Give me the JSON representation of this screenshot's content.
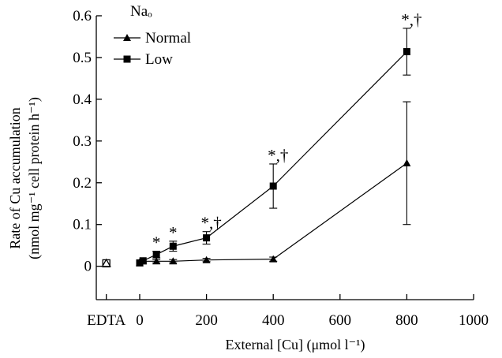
{
  "chart_data": {
    "type": "line",
    "xlabel": "External [Cu] (μmol l⁻¹)",
    "ylabel_line1": "Rate of Cu accumulation",
    "ylabel_line2": "(nmol mg⁻¹ cell protein h⁻¹)",
    "legend_title": "Naₒ",
    "legend_placement": "top-left",
    "grid": false,
    "xlim": [
      -130,
      1000
    ],
    "ylim": [
      -0.08,
      0.6
    ],
    "x_ticks": [
      {
        "value": -100,
        "label": "EDTA"
      },
      {
        "value": 0,
        "label": "0"
      },
      {
        "value": 200,
        "label": "200"
      },
      {
        "value": 400,
        "label": "400"
      },
      {
        "value": 600,
        "label": "600"
      },
      {
        "value": 800,
        "label": "800"
      },
      {
        "value": 1000,
        "label": "1000"
      }
    ],
    "y_ticks": [
      {
        "value": 0,
        "label": "0"
      },
      {
        "value": 0.1,
        "label": "0.1"
      },
      {
        "value": 0.2,
        "label": "0.2"
      },
      {
        "value": 0.3,
        "label": "0.3"
      },
      {
        "value": 0.4,
        "label": "0.4"
      },
      {
        "value": 0.5,
        "label": "0.5"
      },
      {
        "value": 0.6,
        "label": "0.6"
      }
    ],
    "edta_points": [
      {
        "series": "Normal",
        "x": -100,
        "y": 0.007
      },
      {
        "series": "Low",
        "x": -100,
        "y": 0.007
      }
    ],
    "series": [
      {
        "name": "Normal",
        "marker": "triangle",
        "x": [
          0,
          10,
          50,
          100,
          200,
          400,
          800
        ],
        "y": [
          0.008,
          0.012,
          0.012,
          0.012,
          0.015,
          0.017,
          0.247
        ],
        "err": [
          0,
          0,
          0.004,
          0.004,
          0.004,
          0.005,
          0.147
        ]
      },
      {
        "name": "Low",
        "marker": "square",
        "x": [
          0,
          10,
          50,
          100,
          200,
          400,
          800
        ],
        "y": [
          0.008,
          0.013,
          0.028,
          0.048,
          0.068,
          0.192,
          0.514
        ],
        "err": [
          0,
          0.004,
          0.008,
          0.012,
          0.015,
          0.053,
          0.056
        ]
      }
    ],
    "annotations": [
      {
        "x": 50,
        "y_above": 0.036,
        "text": "*"
      },
      {
        "x": 100,
        "y_above": 0.06,
        "text": "*"
      },
      {
        "x": 200,
        "y_above": 0.083,
        "text": "*,†"
      },
      {
        "x": 400,
        "y_above": 0.245,
        "text": "*,†"
      },
      {
        "x": 800,
        "y_above": 0.57,
        "text": "*,†"
      }
    ]
  }
}
